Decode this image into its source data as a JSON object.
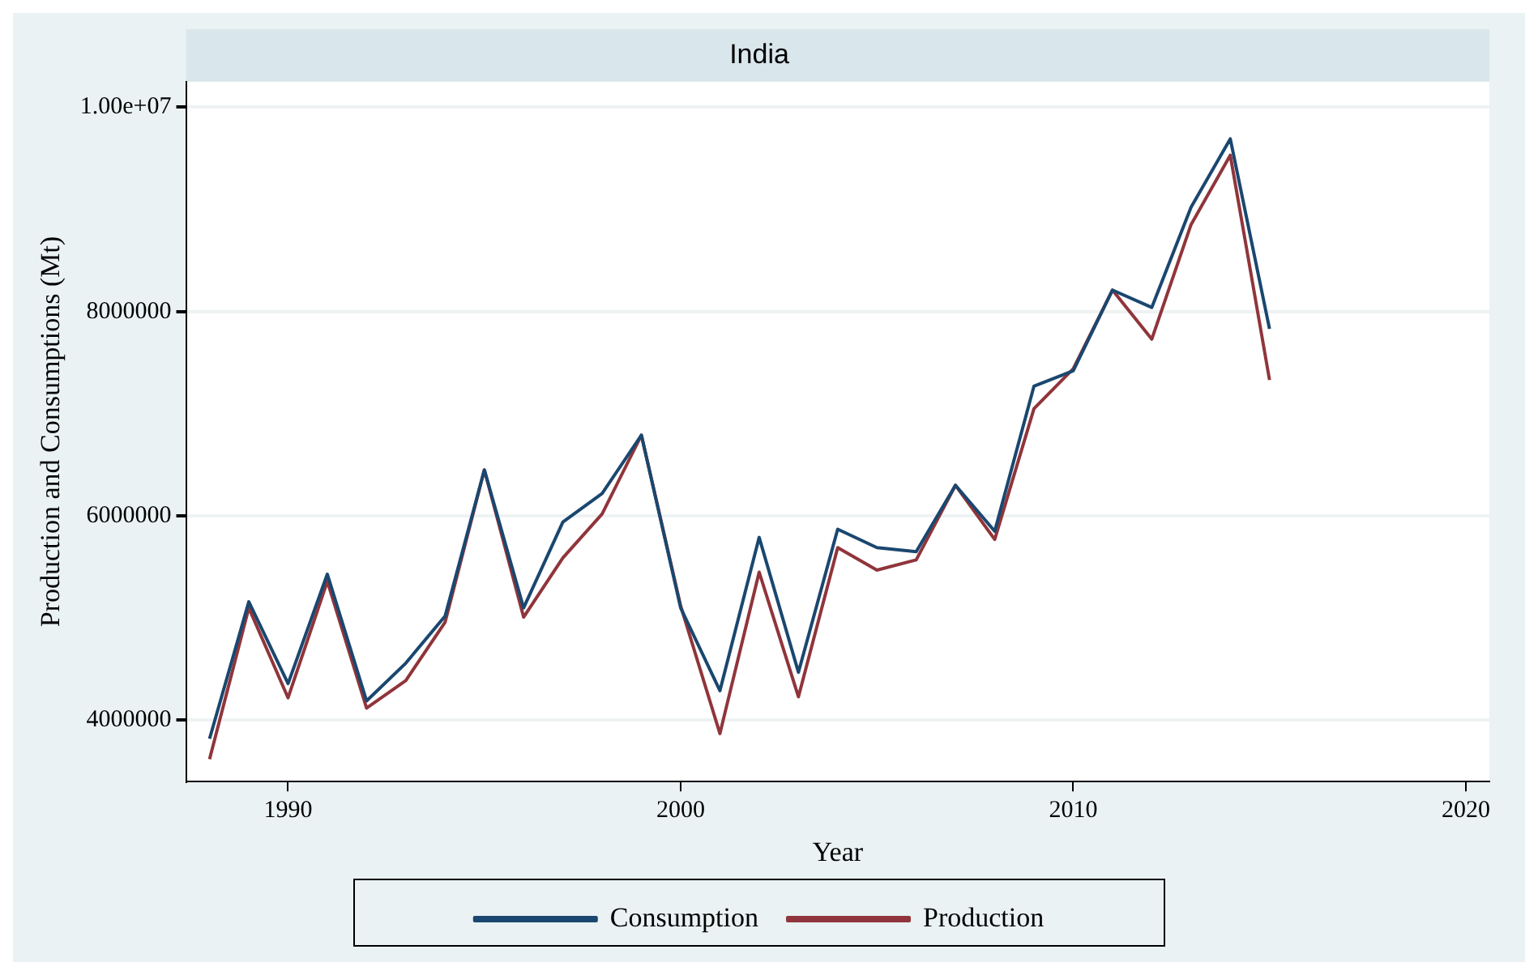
{
  "chart_data": {
    "type": "line",
    "title": "India",
    "xlabel": "Year",
    "ylabel": "Production and Consumptions (Mt)",
    "x": [
      1988,
      1989,
      1990,
      1991,
      1992,
      1993,
      1994,
      1995,
      1996,
      1997,
      1998,
      1999,
      2000,
      2001,
      2002,
      2003,
      2004,
      2005,
      2006,
      2007,
      2008,
      2009,
      2010,
      2011,
      2012,
      2013,
      2014,
      2015
    ],
    "series": [
      {
        "name": "Consumption",
        "color": "#1a476f",
        "values": [
          3820000,
          5160000,
          4360000,
          5430000,
          4190000,
          4560000,
          5020000,
          6450000,
          5100000,
          5940000,
          6220000,
          6790000,
          5100000,
          4290000,
          5790000,
          4470000,
          5870000,
          5690000,
          5650000,
          6300000,
          5850000,
          7270000,
          7420000,
          8210000,
          8040000,
          9020000,
          9690000,
          7830000
        ]
      },
      {
        "name": "Production",
        "color": "#90353b",
        "values": [
          3620000,
          5100000,
          4220000,
          5360000,
          4120000,
          4390000,
          4960000,
          6450000,
          5010000,
          5590000,
          6020000,
          6790000,
          5120000,
          3870000,
          5450000,
          4230000,
          5690000,
          5470000,
          5570000,
          6300000,
          5770000,
          7050000,
          7440000,
          8210000,
          7730000,
          8850000,
          9530000,
          7330000
        ]
      }
    ],
    "xlim": [
      1987.4,
      2020.6
    ],
    "xticks": [
      1990,
      2000,
      2010,
      2020
    ],
    "ylim": [
      3400000,
      10250000
    ],
    "yticks": [
      4000000,
      6000000,
      8000000,
      {
        "value": 10000000,
        "label": "1.00e+07"
      }
    ],
    "grid": "y",
    "legend": "bottom",
    "marker": "none",
    "line_style": "solid"
  }
}
